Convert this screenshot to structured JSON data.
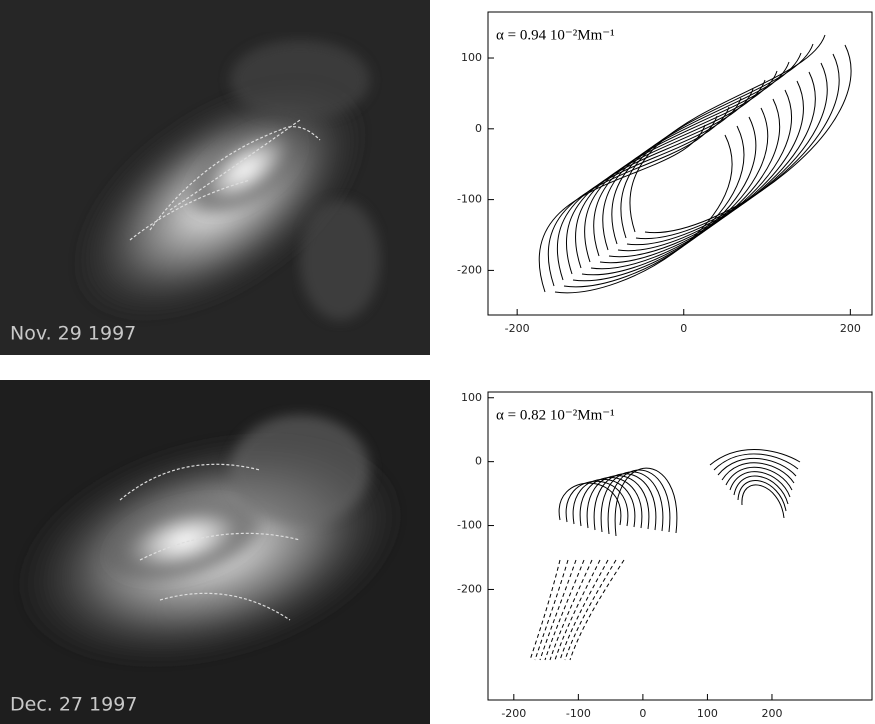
{
  "panels": [
    {
      "image_label": "Nov. 29 1997",
      "plot": {
        "alpha_label": "α = 0.94 10⁻²Mm⁻¹",
        "xlim": [
          -235,
          226
        ],
        "ylim": [
          -263,
          165
        ],
        "xticks": [
          -200,
          0,
          200
        ],
        "yticks": [
          100,
          0,
          -100,
          -200
        ]
      }
    },
    {
      "image_label": "Dec. 27 1997",
      "plot": {
        "alpha_label": "α = 0.82 10⁻²Mm⁻¹",
        "xlim": [
          -240,
          355
        ],
        "ylim": [
          -373,
          109
        ],
        "xticks": [
          -200,
          -100,
          0,
          100,
          200
        ],
        "yticks": [
          100,
          0,
          -100,
          -200
        ]
      }
    }
  ]
}
